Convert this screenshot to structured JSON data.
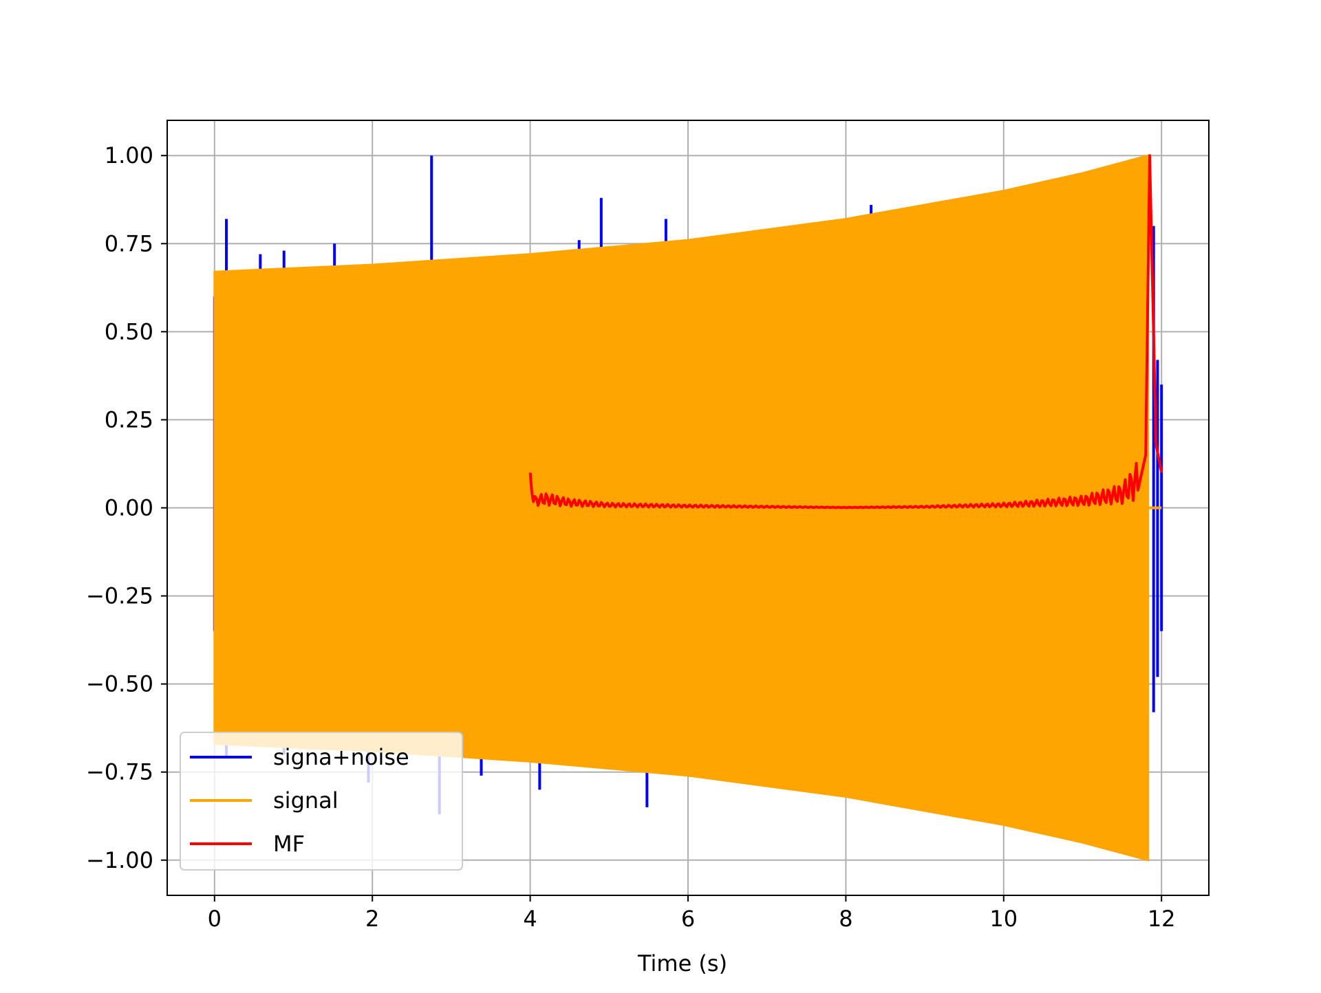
{
  "chart_data": {
    "type": "line",
    "title": "",
    "xlabel": "Time (s)",
    "ylabel": "",
    "xlim": [
      -0.6,
      12.6
    ],
    "ylim": [
      -1.1,
      1.1
    ],
    "xticks": [
      0,
      2,
      4,
      6,
      8,
      10,
      12
    ],
    "xtick_labels": [
      "0",
      "2",
      "4",
      "6",
      "8",
      "10",
      "12"
    ],
    "yticks": [
      -1.0,
      -0.75,
      -0.5,
      -0.25,
      0.0,
      0.25,
      0.5,
      0.75,
      1.0
    ],
    "ytick_labels": [
      "−1.00",
      "−0.75",
      "−0.50",
      "−0.25",
      "0.00",
      "0.25",
      "0.50",
      "0.75",
      "1.00"
    ],
    "grid": true,
    "legend_position": "lower-left",
    "series": [
      {
        "name": "signa+noise",
        "color": "#0000ff",
        "spikes": [
          {
            "x": 0.0,
            "y": 0.6
          },
          {
            "x": 0.0,
            "y": -0.35
          },
          {
            "x": 0.15,
            "y": 0.82
          },
          {
            "x": 0.15,
            "y": -0.71
          },
          {
            "x": 0.58,
            "y": 0.72
          },
          {
            "x": 0.88,
            "y": 0.73
          },
          {
            "x": 0.88,
            "y": -0.7
          },
          {
            "x": 1.52,
            "y": 0.75
          },
          {
            "x": 1.95,
            "y": -0.78
          },
          {
            "x": 2.75,
            "y": 1.0
          },
          {
            "x": 2.85,
            "y": -0.87
          },
          {
            "x": 3.38,
            "y": -0.76
          },
          {
            "x": 4.12,
            "y": -0.8
          },
          {
            "x": 4.62,
            "y": 0.76
          },
          {
            "x": 4.9,
            "y": 0.88
          },
          {
            "x": 5.48,
            "y": -0.85
          },
          {
            "x": 5.72,
            "y": 0.82
          },
          {
            "x": 7.62,
            "y": -0.8
          },
          {
            "x": 8.32,
            "y": 0.86
          },
          {
            "x": 11.9,
            "y": 0.8
          },
          {
            "x": 11.9,
            "y": -0.58
          },
          {
            "x": 11.95,
            "y": 0.42
          },
          {
            "x": 11.95,
            "y": -0.48
          },
          {
            "x": 12.0,
            "y": 0.35
          },
          {
            "x": 12.0,
            "y": -0.35
          }
        ]
      },
      {
        "name": "signal",
        "color": "#ffa500",
        "x_start": 0.0,
        "x_end": 11.83,
        "upper_envelope": [
          [
            0.0,
            0.67
          ],
          [
            2.0,
            0.69
          ],
          [
            4.0,
            0.72
          ],
          [
            6.0,
            0.76
          ],
          [
            8.0,
            0.82
          ],
          [
            10.0,
            0.9
          ],
          [
            11.0,
            0.95
          ],
          [
            11.83,
            1.0
          ]
        ],
        "lower_envelope": [
          [
            0.0,
            -0.67
          ],
          [
            2.0,
            -0.69
          ],
          [
            4.0,
            -0.72
          ],
          [
            6.0,
            -0.76
          ],
          [
            8.0,
            -0.82
          ],
          [
            10.0,
            -0.9
          ],
          [
            11.0,
            -0.95
          ],
          [
            11.83,
            -1.0
          ]
        ],
        "tail": {
          "x_start": 11.83,
          "x_end": 12.0,
          "y": 0.0
        }
      },
      {
        "name": "MF",
        "color": "#ff0000",
        "x_start": 4.0,
        "x_end": 12.0,
        "baseline": [
          [
            4.0,
            0.1
          ],
          [
            4.05,
            0.02
          ],
          [
            4.2,
            0.025
          ],
          [
            4.5,
            0.015
          ],
          [
            5.0,
            0.008
          ],
          [
            6.0,
            0.005
          ],
          [
            7.0,
            0.003
          ],
          [
            8.0,
            0.001
          ],
          [
            9.0,
            0.003
          ],
          [
            10.0,
            0.008
          ],
          [
            11.0,
            0.02
          ],
          [
            11.5,
            0.04
          ],
          [
            11.7,
            0.08
          ]
        ],
        "peak": {
          "x": 11.85,
          "y": 1.0
        },
        "after_peak": [
          [
            11.93,
            0.18
          ],
          [
            12.0,
            0.1
          ]
        ]
      }
    ]
  }
}
